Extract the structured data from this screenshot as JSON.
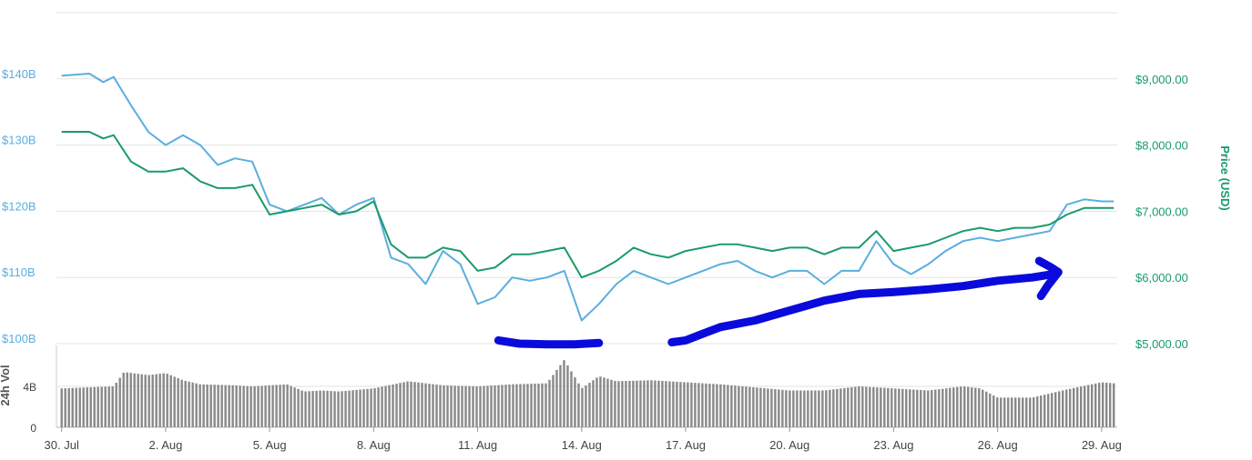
{
  "chart_data": {
    "type": "line",
    "x_axis": {
      "ticks": [
        "30. Jul",
        "2. Aug",
        "5. Aug",
        "8. Aug",
        "11. Aug",
        "14. Aug",
        "17. Aug",
        "20. Aug",
        "23. Aug",
        "26. Aug",
        "29. Aug"
      ],
      "tick_days": [
        0,
        3,
        6,
        9,
        12,
        15,
        18,
        21,
        24,
        27,
        30
      ],
      "range_days": [
        -0.15,
        30.45
      ]
    },
    "y_left": {
      "ticks": [
        "$100B",
        "$110B",
        "$120B",
        "$130B",
        "$140B"
      ],
      "tick_values": [
        100,
        110,
        120,
        130,
        140
      ],
      "range": [
        100,
        150
      ],
      "unit": "billions USD"
    },
    "y_right": {
      "label": "Price (USD)",
      "ticks": [
        "$5,000.00",
        "$6,000.00",
        "$7,000.00",
        "$8,000.00",
        "$9,000.00"
      ],
      "tick_values": [
        5000,
        6000,
        7000,
        8000,
        9000
      ],
      "range": [
        5000,
        10000
      ]
    },
    "volume_axis": {
      "label": "24h Vol",
      "ticks": [
        "0",
        "4B"
      ],
      "tick_values": [
        0,
        4
      ],
      "range": [
        0,
        8
      ]
    },
    "grid": true,
    "series": [
      {
        "role": "market-cap",
        "axis": "left",
        "color": "#5aaee0",
        "x": [
          0,
          0.8,
          1.2,
          1.5,
          2.0,
          2.5,
          3.0,
          3.5,
          4.0,
          4.5,
          5.0,
          5.5,
          6.0,
          6.5,
          7.0,
          7.5,
          8.0,
          8.5,
          9.0,
          9.5,
          10.0,
          10.5,
          11.0,
          11.5,
          12.0,
          12.5,
          13.0,
          13.5,
          14.0,
          14.5,
          15.0,
          15.5,
          16.0,
          16.5,
          17.0,
          17.5,
          18.0,
          18.5,
          19.0,
          19.5,
          20.0,
          20.5,
          21.0,
          21.5,
          22.0,
          22.5,
          23.0,
          23.5,
          24.0,
          24.5,
          25.0,
          25.5,
          26.0,
          26.5,
          27.0,
          27.5,
          28.0,
          28.5,
          29.0,
          29.5,
          30.0,
          30.35
        ],
        "y": [
          140.5,
          140.8,
          139.5,
          140.3,
          136.0,
          132.0,
          130.0,
          131.5,
          130.0,
          127.0,
          128.0,
          127.5,
          121.0,
          120.0,
          121.0,
          122.0,
          119.5,
          121.0,
          122.0,
          113.0,
          112.0,
          109.0,
          114.0,
          112.0,
          106.0,
          107.0,
          110.0,
          109.5,
          110.0,
          111.0,
          103.5,
          106.0,
          109.0,
          111.0,
          110.0,
          109.0,
          110.0,
          111.0,
          112.0,
          112.5,
          111.0,
          110.0,
          111.0,
          111.0,
          109.0,
          111.0,
          111.0,
          115.5,
          112.0,
          110.5,
          112.0,
          114.0,
          115.5,
          116.0,
          115.5,
          116.0,
          116.5,
          117.0,
          121.0,
          121.8,
          121.5,
          121.5
        ]
      },
      {
        "role": "price",
        "axis": "right",
        "color": "#1a9a6c",
        "x": [
          0,
          0.8,
          1.2,
          1.5,
          2.0,
          2.5,
          3.0,
          3.5,
          4.0,
          4.5,
          5.0,
          5.5,
          6.0,
          6.5,
          7.0,
          7.5,
          8.0,
          8.5,
          9.0,
          9.5,
          10.0,
          10.5,
          11.0,
          11.5,
          12.0,
          12.5,
          13.0,
          13.5,
          14.0,
          14.5,
          15.0,
          15.5,
          16.0,
          16.5,
          17.0,
          17.5,
          18.0,
          18.5,
          19.0,
          19.5,
          20.0,
          20.5,
          21.0,
          21.5,
          22.0,
          22.5,
          23.0,
          23.5,
          24.0,
          24.5,
          25.0,
          25.5,
          26.0,
          26.5,
          27.0,
          27.5,
          28.0,
          28.5,
          29.0,
          29.5,
          30.0,
          30.35
        ],
        "y": [
          8200,
          8200,
          8100,
          8150,
          7750,
          7600,
          7600,
          7650,
          7450,
          7350,
          7350,
          7400,
          6950,
          7000,
          7050,
          7100,
          6950,
          7000,
          7150,
          6500,
          6300,
          6300,
          6450,
          6400,
          6100,
          6150,
          6350,
          6350,
          6400,
          6450,
          6000,
          6100,
          6250,
          6450,
          6350,
          6300,
          6400,
          6450,
          6500,
          6500,
          6450,
          6400,
          6450,
          6450,
          6350,
          6450,
          6450,
          6700,
          6400,
          6450,
          6500,
          6600,
          6700,
          6750,
          6700,
          6750,
          6750,
          6800,
          6950,
          7050,
          7050,
          7050
        ]
      },
      {
        "role": "24h-volume",
        "axis": "volume",
        "color": "#888888",
        "x": [
          0,
          1.5,
          1.8,
          2.5,
          3.0,
          3.5,
          4.0,
          5.0,
          5.5,
          6.0,
          6.5,
          7.0,
          7.5,
          8.0,
          9.0,
          10.0,
          11.0,
          12.0,
          13.0,
          14.0,
          14.5,
          15.0,
          15.5,
          16.0,
          17.0,
          18.0,
          19.0,
          20.0,
          21.0,
          22.0,
          23.0,
          24.0,
          25.0,
          26.0,
          26.5,
          27.0,
          28.0,
          29.0,
          30.0,
          30.35
        ],
        "y": [
          3.8,
          4.0,
          5.4,
          5.1,
          5.3,
          4.6,
          4.2,
          4.1,
          4.0,
          4.1,
          4.2,
          3.5,
          3.6,
          3.5,
          3.8,
          4.5,
          4.1,
          4.0,
          4.2,
          4.3,
          6.6,
          3.8,
          5.0,
          4.5,
          4.6,
          4.4,
          4.2,
          3.9,
          3.6,
          3.6,
          4.0,
          3.8,
          3.6,
          4.0,
          3.8,
          2.9,
          2.9,
          3.7,
          4.4,
          4.3
        ]
      }
    ],
    "annotations": [
      {
        "type": "freehand-stroke",
        "color": "#0a0adc",
        "description": "hand-drawn blue arrow curving upward under the price lines toward the right",
        "x": [
          12.6,
          13.2,
          14.0,
          14.8,
          15.5
        ],
        "y": [
          5050,
          5000,
          4990,
          4990,
          5010
        ]
      },
      {
        "type": "freehand-stroke",
        "color": "#0a0adc",
        "x": [
          17.6,
          18.0,
          18.5,
          19.0,
          20.0,
          21.0,
          22.0,
          23.0,
          24.0,
          25.0,
          26.0,
          27.0,
          28.0,
          28.6
        ],
        "y": [
          5020,
          5050,
          5150,
          5250,
          5350,
          5500,
          5650,
          5750,
          5780,
          5820,
          5870,
          5950,
          6000,
          6050
        ]
      },
      {
        "type": "freehand-stroke",
        "color": "#0a0adc",
        "x": [
          28.2,
          28.55,
          28.75,
          28.6,
          28.45,
          28.25
        ],
        "y": [
          6250,
          6150,
          6080,
          5980,
          5880,
          5720
        ]
      }
    ]
  }
}
